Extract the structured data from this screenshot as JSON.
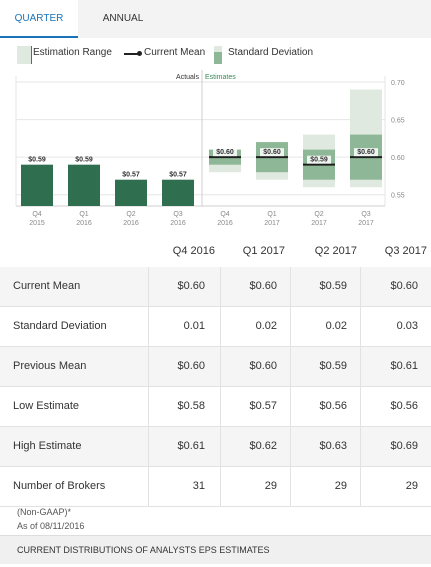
{
  "tabs": [
    {
      "label": "QUARTER"
    },
    {
      "label": "ANNUAL"
    }
  ],
  "legend": {
    "range": "Estimation Range",
    "mean": "Current Mean",
    "sd": "Standard Deviation"
  },
  "section_labels": {
    "actuals": "Actuals",
    "estimates": "Estimates"
  },
  "colors": {
    "actual_bar": "#2f6f4f",
    "range_fill": "#dfe9df",
    "sd_fill": "#8db796",
    "accent": "#1a73b8",
    "estimates_label": "#3a8a55"
  },
  "chart_data": {
    "type": "bar",
    "ylim": [
      0.535,
      0.7
    ],
    "yticks": [
      "0.70",
      "0.65",
      "0.60",
      "0.55"
    ],
    "ytick_values": [
      0.7,
      0.65,
      0.6,
      0.55
    ],
    "actuals": [
      {
        "q": "Q4",
        "y": "2015",
        "value": 0.59,
        "label": "$0.59"
      },
      {
        "q": "Q1",
        "y": "2016",
        "value": 0.59,
        "label": "$0.59"
      },
      {
        "q": "Q2",
        "y": "2016",
        "value": 0.57,
        "label": "$0.57"
      },
      {
        "q": "Q3",
        "y": "2016",
        "value": 0.57,
        "label": "$0.57"
      }
    ],
    "estimates": [
      {
        "q": "Q4",
        "y": "2016",
        "mean": 0.6,
        "sd": 0.01,
        "low": 0.58,
        "high": 0.61,
        "label": "$0.60"
      },
      {
        "q": "Q1",
        "y": "2017",
        "mean": 0.6,
        "sd": 0.02,
        "low": 0.57,
        "high": 0.62,
        "label": "$0.60"
      },
      {
        "q": "Q2",
        "y": "2017",
        "mean": 0.59,
        "sd": 0.02,
        "low": 0.56,
        "high": 0.63,
        "label": "$0.59"
      },
      {
        "q": "Q3",
        "y": "2017",
        "mean": 0.6,
        "sd": 0.03,
        "low": 0.56,
        "high": 0.69,
        "label": "$0.60"
      }
    ]
  },
  "table": {
    "headers": [
      "Q4 2016",
      "Q1 2017",
      "Q2 2017",
      "Q3 2017"
    ],
    "rows": [
      {
        "label": "Current Mean",
        "values": [
          "$0.60",
          "$0.60",
          "$0.59",
          "$0.60"
        ]
      },
      {
        "label": "Standard Deviation",
        "values": [
          "0.01",
          "0.02",
          "0.02",
          "0.03"
        ]
      },
      {
        "label": "Previous Mean",
        "values": [
          "$0.60",
          "$0.60",
          "$0.59",
          "$0.61"
        ]
      },
      {
        "label": "Low Estimate",
        "values": [
          "$0.58",
          "$0.57",
          "$0.56",
          "$0.56"
        ]
      },
      {
        "label": "High Estimate",
        "values": [
          "$0.61",
          "$0.62",
          "$0.63",
          "$0.69"
        ]
      },
      {
        "label": "Number of Brokers",
        "values": [
          "31",
          "29",
          "29",
          "29"
        ]
      }
    ]
  },
  "note": {
    "gaap": "(Non-GAAP)*",
    "asof": "As of 08/11/2016"
  },
  "footer": "CURRENT DISTRIBUTIONS OF ANALYSTS EPS ESTIMATES"
}
